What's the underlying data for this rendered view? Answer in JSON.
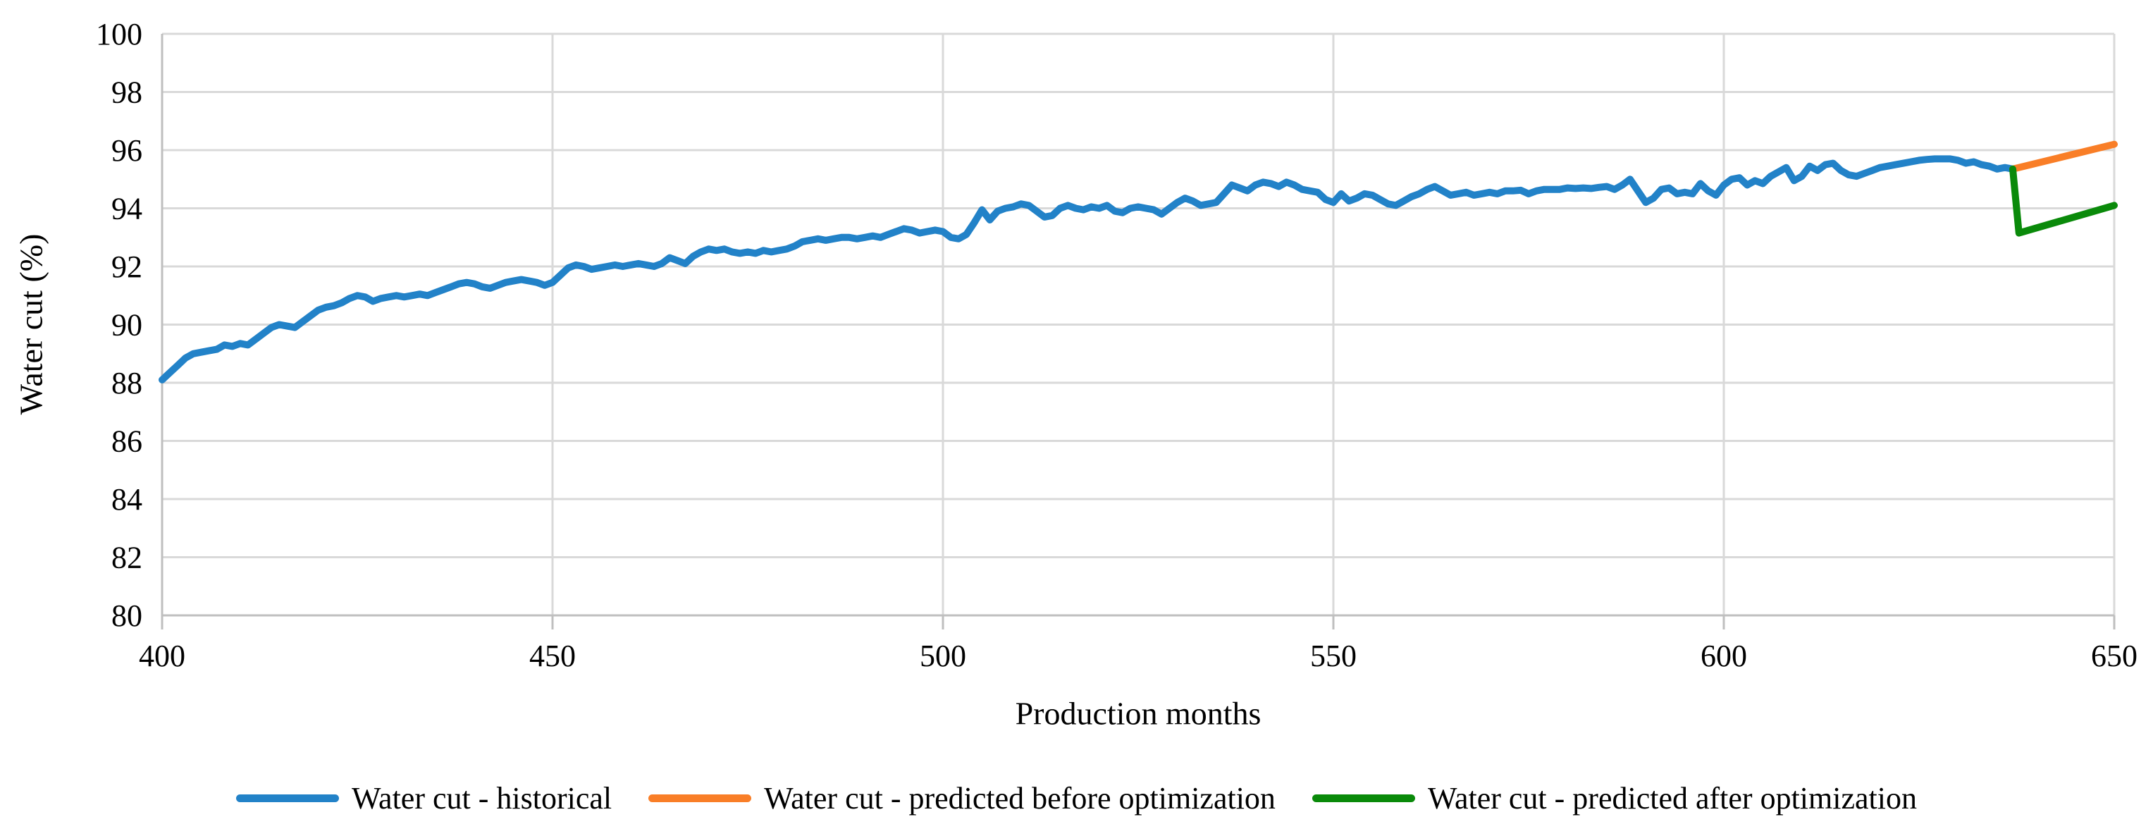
{
  "figure": {
    "x_axis_title": "Production months",
    "y_axis_title": "Water cut (%)"
  },
  "colors": {
    "historical": "#2282C8",
    "predicted_before": "#F97E27",
    "predicted_after": "#0A8A0A",
    "gridline": "#D9D9D9",
    "axis_line": "#BFBFBF",
    "text": "#000000"
  },
  "chart_data": {
    "type": "line",
    "title": "",
    "xlabel": "Production months",
    "ylabel": "Water cut (%)",
    "xlim": [
      400,
      650
    ],
    "ylim": [
      80,
      100
    ],
    "x_ticks": [
      400,
      450,
      500,
      550,
      600,
      650
    ],
    "y_ticks": [
      80,
      82,
      84,
      86,
      88,
      90,
      92,
      94,
      96,
      98,
      100
    ],
    "grid": true,
    "legend_position": "bottom",
    "series": [
      {
        "name": "Water cut - historical",
        "color": "#2282C8",
        "points": [
          [
            400,
            88.1
          ],
          [
            401,
            88.35
          ],
          [
            402,
            88.6
          ],
          [
            403,
            88.85
          ],
          [
            404,
            89.0
          ],
          [
            405,
            89.05
          ],
          [
            406,
            89.1
          ],
          [
            407,
            89.15
          ],
          [
            408,
            89.3
          ],
          [
            409,
            89.25
          ],
          [
            410,
            89.35
          ],
          [
            411,
            89.3
          ],
          [
            412,
            89.5
          ],
          [
            413,
            89.7
          ],
          [
            414,
            89.9
          ],
          [
            415,
            90.0
          ],
          [
            416,
            89.95
          ],
          [
            417,
            89.9
          ],
          [
            418,
            90.1
          ],
          [
            419,
            90.3
          ],
          [
            420,
            90.5
          ],
          [
            421,
            90.6
          ],
          [
            422,
            90.65
          ],
          [
            423,
            90.75
          ],
          [
            424,
            90.9
          ],
          [
            425,
            91.0
          ],
          [
            426,
            90.95
          ],
          [
            427,
            90.8
          ],
          [
            428,
            90.9
          ],
          [
            429,
            90.95
          ],
          [
            430,
            91.0
          ],
          [
            431,
            90.95
          ],
          [
            432,
            91.0
          ],
          [
            433,
            91.05
          ],
          [
            434,
            91.0
          ],
          [
            435,
            91.1
          ],
          [
            436,
            91.2
          ],
          [
            437,
            91.3
          ],
          [
            438,
            91.4
          ],
          [
            439,
            91.45
          ],
          [
            440,
            91.4
          ],
          [
            441,
            91.3
          ],
          [
            442,
            91.25
          ],
          [
            443,
            91.35
          ],
          [
            444,
            91.45
          ],
          [
            445,
            91.5
          ],
          [
            446,
            91.55
          ],
          [
            447,
            91.5
          ],
          [
            448,
            91.45
          ],
          [
            449,
            91.35
          ],
          [
            450,
            91.45
          ],
          [
            451,
            91.7
          ],
          [
            452,
            91.95
          ],
          [
            453,
            92.05
          ],
          [
            454,
            92.0
          ],
          [
            455,
            91.9
          ],
          [
            456,
            91.95
          ],
          [
            457,
            92.0
          ],
          [
            458,
            92.05
          ],
          [
            459,
            92.0
          ],
          [
            460,
            92.05
          ],
          [
            461,
            92.1
          ],
          [
            462,
            92.05
          ],
          [
            463,
            92.0
          ],
          [
            464,
            92.1
          ],
          [
            465,
            92.3
          ],
          [
            466,
            92.2
          ],
          [
            467,
            92.1
          ],
          [
            468,
            92.35
          ],
          [
            469,
            92.5
          ],
          [
            470,
            92.6
          ],
          [
            471,
            92.55
          ],
          [
            472,
            92.6
          ],
          [
            473,
            92.5
          ],
          [
            474,
            92.45
          ],
          [
            475,
            92.5
          ],
          [
            476,
            92.45
          ],
          [
            477,
            92.55
          ],
          [
            478,
            92.5
          ],
          [
            479,
            92.55
          ],
          [
            480,
            92.6
          ],
          [
            481,
            92.7
          ],
          [
            482,
            92.85
          ],
          [
            483,
            92.9
          ],
          [
            484,
            92.95
          ],
          [
            485,
            92.9
          ],
          [
            486,
            92.95
          ],
          [
            487,
            93.0
          ],
          [
            488,
            93.0
          ],
          [
            489,
            92.95
          ],
          [
            490,
            93.0
          ],
          [
            491,
            93.05
          ],
          [
            492,
            93.0
          ],
          [
            493,
            93.1
          ],
          [
            494,
            93.2
          ],
          [
            495,
            93.3
          ],
          [
            496,
            93.25
          ],
          [
            497,
            93.15
          ],
          [
            498,
            93.2
          ],
          [
            499,
            93.25
          ],
          [
            500,
            93.2
          ],
          [
            501,
            93.0
          ],
          [
            502,
            92.95
          ],
          [
            503,
            93.1
          ],
          [
            504,
            93.5
          ],
          [
            505,
            93.95
          ],
          [
            506,
            93.6
          ],
          [
            507,
            93.9
          ],
          [
            508,
            94.0
          ],
          [
            509,
            94.05
          ],
          [
            510,
            94.15
          ],
          [
            511,
            94.1
          ],
          [
            512,
            93.9
          ],
          [
            513,
            93.7
          ],
          [
            514,
            93.75
          ],
          [
            515,
            94.0
          ],
          [
            516,
            94.1
          ],
          [
            517,
            94.0
          ],
          [
            518,
            93.95
          ],
          [
            519,
            94.05
          ],
          [
            520,
            94.0
          ],
          [
            521,
            94.1
          ],
          [
            522,
            93.9
          ],
          [
            523,
            93.85
          ],
          [
            524,
            94.0
          ],
          [
            525,
            94.05
          ],
          [
            526,
            94.0
          ],
          [
            527,
            93.95
          ],
          [
            528,
            93.8
          ],
          [
            529,
            94.0
          ],
          [
            530,
            94.2
          ],
          [
            531,
            94.35
          ],
          [
            532,
            94.25
          ],
          [
            533,
            94.1
          ],
          [
            534,
            94.15
          ],
          [
            535,
            94.2
          ],
          [
            536,
            94.5
          ],
          [
            537,
            94.8
          ],
          [
            538,
            94.7
          ],
          [
            539,
            94.6
          ],
          [
            540,
            94.8
          ],
          [
            541,
            94.9
          ],
          [
            542,
            94.85
          ],
          [
            543,
            94.75
          ],
          [
            544,
            94.9
          ],
          [
            545,
            94.8
          ],
          [
            546,
            94.65
          ],
          [
            547,
            94.6
          ],
          [
            548,
            94.55
          ],
          [
            549,
            94.3
          ],
          [
            550,
            94.2
          ],
          [
            551,
            94.5
          ],
          [
            552,
            94.25
          ],
          [
            553,
            94.35
          ],
          [
            554,
            94.5
          ],
          [
            555,
            94.45
          ],
          [
            556,
            94.3
          ],
          [
            557,
            94.15
          ],
          [
            558,
            94.1
          ],
          [
            559,
            94.25
          ],
          [
            560,
            94.4
          ],
          [
            561,
            94.5
          ],
          [
            562,
            94.65
          ],
          [
            563,
            94.75
          ],
          [
            564,
            94.6
          ],
          [
            565,
            94.45
          ],
          [
            566,
            94.5
          ],
          [
            567,
            94.55
          ],
          [
            568,
            94.45
          ],
          [
            569,
            94.5
          ],
          [
            570,
            94.55
          ],
          [
            571,
            94.5
          ],
          [
            572,
            94.6
          ],
          [
            573,
            94.6
          ],
          [
            574,
            94.62
          ],
          [
            575,
            94.5
          ],
          [
            576,
            94.6
          ],
          [
            577,
            94.65
          ],
          [
            578,
            94.65
          ],
          [
            579,
            94.65
          ],
          [
            580,
            94.7
          ],
          [
            581,
            94.68
          ],
          [
            582,
            94.7
          ],
          [
            583,
            94.68
          ],
          [
            584,
            94.72
          ],
          [
            585,
            94.75
          ],
          [
            586,
            94.65
          ],
          [
            587,
            94.8
          ],
          [
            588,
            95.0
          ],
          [
            589,
            94.6
          ],
          [
            590,
            94.2
          ],
          [
            591,
            94.35
          ],
          [
            592,
            94.65
          ],
          [
            593,
            94.7
          ],
          [
            594,
            94.5
          ],
          [
            595,
            94.55
          ],
          [
            596,
            94.5
          ],
          [
            597,
            94.85
          ],
          [
            598,
            94.6
          ],
          [
            599,
            94.45
          ],
          [
            600,
            94.8
          ],
          [
            601,
            95.0
          ],
          [
            602,
            95.05
          ],
          [
            603,
            94.8
          ],
          [
            604,
            94.95
          ],
          [
            605,
            94.85
          ],
          [
            606,
            95.1
          ],
          [
            607,
            95.25
          ],
          [
            608,
            95.4
          ],
          [
            609,
            94.95
          ],
          [
            610,
            95.1
          ],
          [
            611,
            95.45
          ],
          [
            612,
            95.3
          ],
          [
            613,
            95.5
          ],
          [
            614,
            95.55
          ],
          [
            615,
            95.3
          ],
          [
            616,
            95.15
          ],
          [
            617,
            95.1
          ],
          [
            618,
            95.2
          ],
          [
            619,
            95.3
          ],
          [
            620,
            95.4
          ],
          [
            621,
            95.45
          ],
          [
            622,
            95.5
          ],
          [
            623,
            95.55
          ],
          [
            624,
            95.6
          ],
          [
            625,
            95.65
          ],
          [
            626,
            95.68
          ],
          [
            627,
            95.7
          ],
          [
            628,
            95.7
          ],
          [
            629,
            95.7
          ],
          [
            630,
            95.65
          ],
          [
            631,
            95.55
          ],
          [
            632,
            95.6
          ],
          [
            633,
            95.5
          ],
          [
            634,
            95.45
          ],
          [
            635,
            95.35
          ],
          [
            636,
            95.4
          ],
          [
            637,
            95.35
          ]
        ]
      },
      {
        "name": "Water cut - predicted before optimization",
        "color": "#F97E27",
        "points": [
          [
            637,
            95.35
          ],
          [
            650,
            96.2
          ]
        ]
      },
      {
        "name": "Water cut - predicted after optimization",
        "color": "#0A8A0A",
        "points": [
          [
            637,
            95.35
          ],
          [
            637.8,
            93.15
          ],
          [
            650,
            94.1
          ]
        ]
      }
    ]
  }
}
